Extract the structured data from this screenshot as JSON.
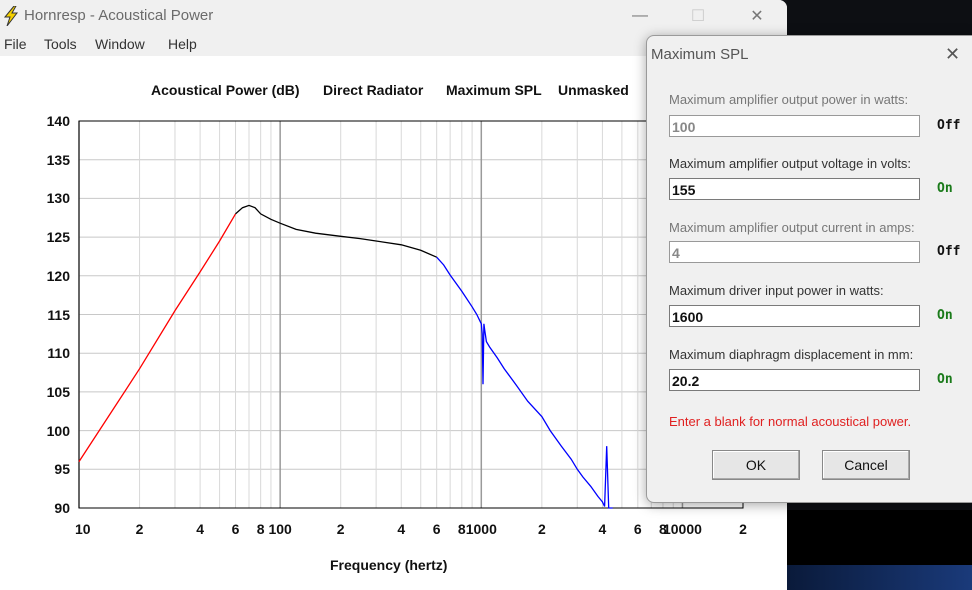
{
  "window": {
    "title": "Hornresp - Acoustical Power",
    "controls": {
      "minimize": "—",
      "maximize": "☐",
      "close": "✕"
    }
  },
  "menu": [
    "File",
    "Tools",
    "Window",
    "Help"
  ],
  "chart_header": [
    "Acoustical Power (dB)",
    "Direct Radiator",
    "Maximum SPL",
    "Unmasked"
  ],
  "chart_data": {
    "type": "line",
    "title": "",
    "xlabel": "Frequency (hertz)",
    "ylabel": "",
    "xscale": "log",
    "xlim": [
      10,
      20000
    ],
    "ylim": [
      90,
      140
    ],
    "y_ticks": [
      "140",
      "135",
      "130",
      "125",
      "120",
      "115",
      "110",
      "105",
      "100",
      "95",
      "90"
    ],
    "x_ticks": [
      "10",
      "2",
      "4",
      "6",
      "8",
      "100",
      "2",
      "4",
      "6",
      "8",
      "1000",
      "2",
      "4",
      "6",
      "8",
      "10000",
      "2"
    ],
    "grid": true,
    "series": [
      {
        "color": "#ff0000",
        "x": [
          10,
          15,
          20,
          30,
          40,
          50,
          60
        ],
        "y": [
          96.0,
          103.0,
          108.0,
          115.5,
          120.5,
          124.5,
          128.0
        ]
      },
      {
        "color": "#000000",
        "x": [
          60,
          65,
          70,
          75,
          80,
          90,
          100,
          120,
          150,
          200,
          250,
          300,
          400,
          500,
          600
        ],
        "y": [
          128.0,
          128.8,
          129.1,
          128.8,
          128.0,
          127.3,
          126.8,
          126.0,
          125.5,
          125.1,
          124.8,
          124.5,
          124.0,
          123.3,
          122.4
        ]
      },
      {
        "color": "#0000ff",
        "x": [
          600,
          650,
          700,
          800,
          900,
          950,
          1000,
          1010,
          1020,
          1030,
          1040,
          1060,
          1100,
          1200,
          1300,
          1500,
          1700,
          2000,
          2200,
          2500,
          2800,
          3000,
          3200,
          3500,
          3800,
          4000,
          4100,
          4200,
          4300,
          4400,
          4500
        ],
        "y": [
          122.4,
          121.4,
          120.1,
          118.0,
          116.0,
          115.0,
          113.8,
          112.5,
          106.0,
          113.8,
          113.0,
          111.5,
          110.8,
          109.4,
          108.0,
          105.8,
          103.8,
          101.8,
          100.0,
          98.0,
          96.3,
          95.0,
          94.0,
          92.8,
          91.5,
          90.8,
          90.2,
          98.0,
          90.0,
          90.0,
          90.0
        ]
      }
    ]
  },
  "dialog": {
    "title": "Maximum SPL",
    "close": "✕",
    "fields": [
      {
        "label": "Maximum amplifier output power in watts:",
        "value": "100",
        "status": "Off"
      },
      {
        "label": "Maximum amplifier output voltage in volts:",
        "value": "155",
        "status": "On"
      },
      {
        "label": "Maximum amplifier output current in amps:",
        "value": "4",
        "status": "Off"
      },
      {
        "label": "Maximum driver input power in watts:",
        "value": "1600",
        "status": "On"
      },
      {
        "label": "Maximum diaphragm displacement in mm:",
        "value": "20.2",
        "status": "On"
      }
    ],
    "hint": "Enter a blank for normal acoustical power.",
    "ok_label": "OK",
    "cancel_label": "Cancel"
  }
}
